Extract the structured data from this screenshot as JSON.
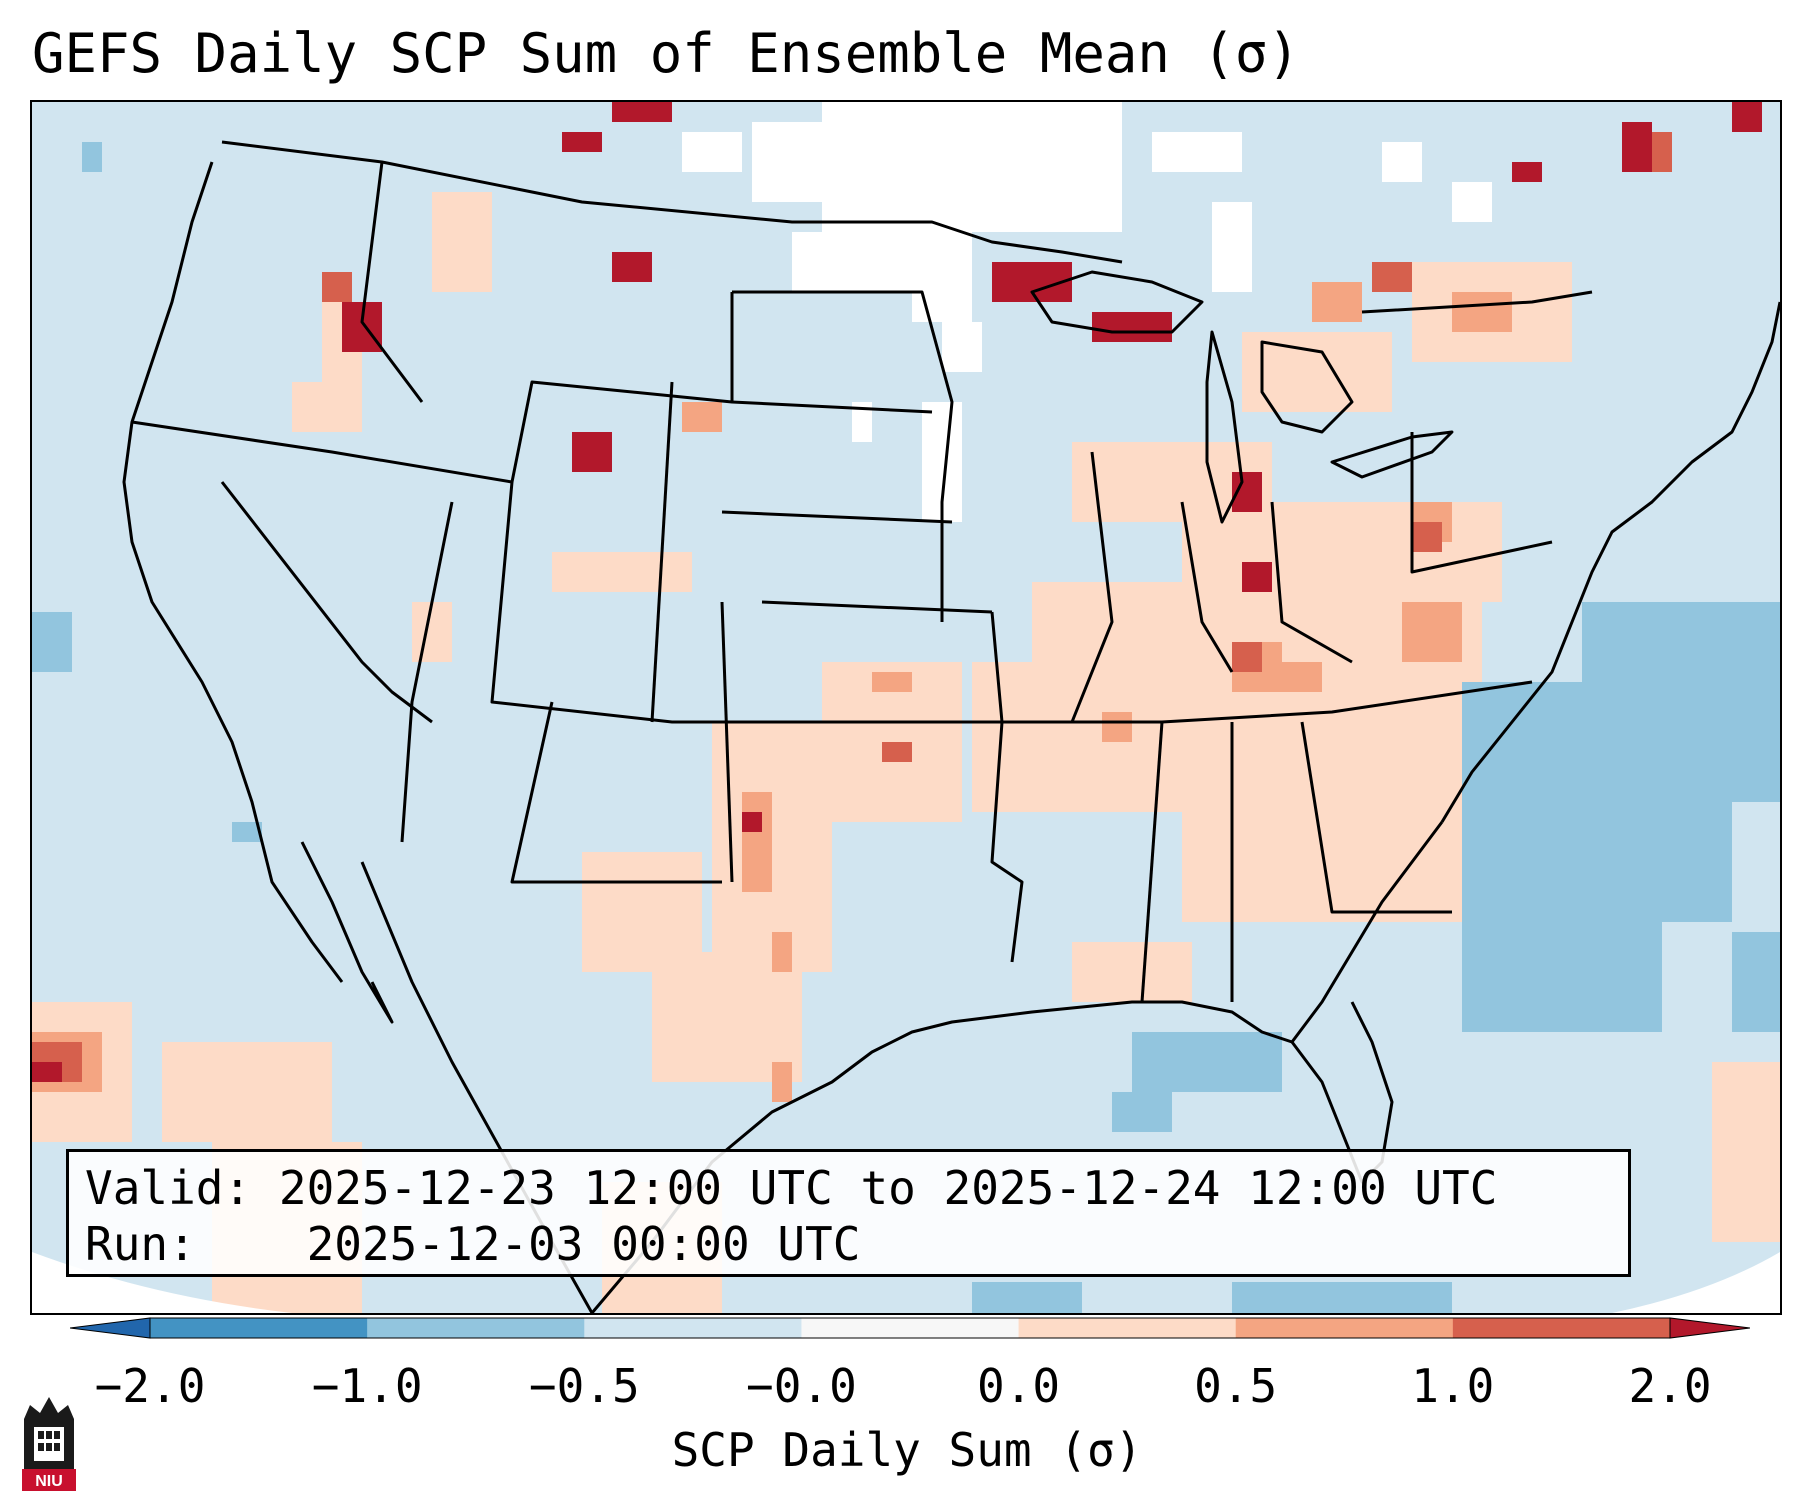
{
  "title": "GEFS Daily SCP Sum of Ensemble Mean (σ)",
  "info": {
    "valid_label": "Valid:",
    "valid_value": "2025-12-23 12:00 UTC to 2025-12-24 12:00 UTC",
    "run_label": "Run:",
    "run_value": "2025-12-03 00:00 UTC"
  },
  "colorbar": {
    "label": "SCP Daily Sum (σ)",
    "ticks": [
      "−2.0",
      "−1.0",
      "−0.5",
      "−0.0",
      "0.0",
      "0.5",
      "1.0",
      "2.0"
    ],
    "bin_colors": [
      "#4393c3",
      "#92c5de",
      "#d1e5f0",
      "#f7f7f7",
      "#fddbc7",
      "#f4a582",
      "#d6604d"
    ],
    "under_color": "#2166ac",
    "over_color": "#b2182b"
  },
  "map_colors": {
    "background": "#d1e5f0",
    "near_zero": "#ffffff",
    "light_positive": "#fddbc7",
    "moderate_positive": "#f4a582",
    "strong_positive": "#d6604d",
    "max_positive": "#b2182b",
    "negative": "#92c5de"
  },
  "logo": {
    "text": "NIU",
    "primary_color": "#c8102e",
    "secondary_color": "#000000"
  }
}
